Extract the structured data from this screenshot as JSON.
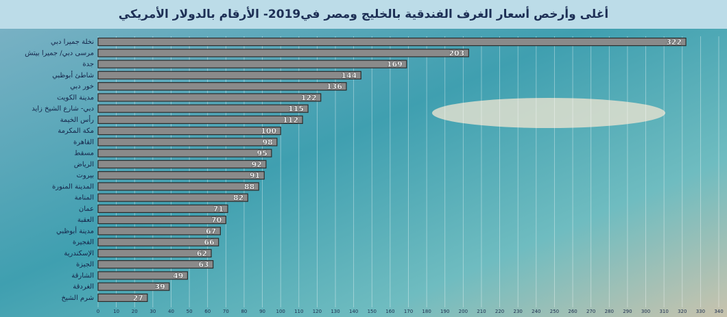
{
  "chart_data": {
    "type": "hbar",
    "title": "أغلى وأرخص أسعار الغرف الفندقية بالخليج ومصر في2019- الأرقام بالدولار الأمريكي",
    "categories": [
      "نخلة جميرا دبي",
      "مرسى دبي/ جميرا بيتش",
      "جدة",
      "شاطئ أبوظبي",
      "خور دبي",
      "مدينة الكويت",
      "دبي- شارع الشيخ زايد",
      "رأس الخيمة",
      "مكة المكرمة",
      "القاهرة",
      "مسقط",
      "الرياض",
      "بيروت",
      "المدينة المنورة",
      "المنامة",
      "عمان",
      "العقبة",
      "مدينة أبوظبي",
      "الفجيرة",
      "الإسكندرية",
      "الجيزة",
      "الشارقة",
      "الغردقة",
      "شرم الشيخ"
    ],
    "values": [
      322,
      203,
      169,
      144,
      136,
      122,
      115,
      112,
      100,
      98,
      95,
      92,
      91,
      88,
      82,
      71,
      70,
      67,
      66,
      62,
      63,
      49,
      39,
      27
    ],
    "color": "#8a8a8a",
    "xlim": [
      0,
      340
    ],
    "xticks": [
      0,
      10,
      20,
      30,
      40,
      50,
      60,
      70,
      80,
      90,
      100,
      110,
      120,
      130,
      140,
      150,
      160,
      170,
      180,
      190,
      200,
      210,
      220,
      230,
      240,
      250,
      260,
      270,
      280,
      290,
      300,
      310,
      320,
      330,
      340
    ],
    "grid": true
  }
}
